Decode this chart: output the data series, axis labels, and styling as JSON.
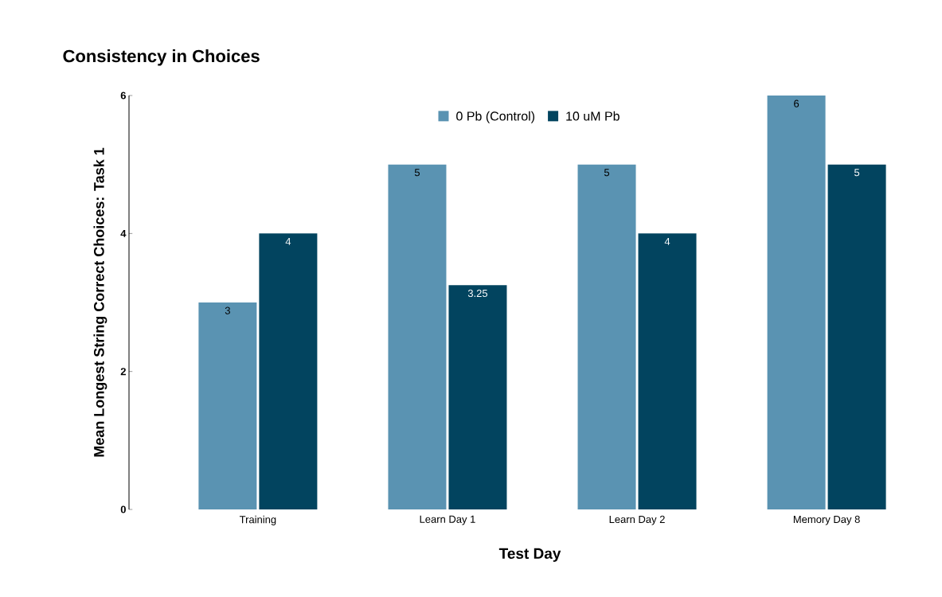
{
  "chart_data": {
    "type": "bar",
    "title": "Consistency in Choices",
    "xlabel": "Test Day",
    "ylabel": "Mean Longest String Correct Choices: Task 1",
    "categories": [
      "Training",
      "Learn Day 1",
      "Learn Day 2",
      "Memory Day 8"
    ],
    "series": [
      {
        "name": "0 Pb (Control)",
        "color": "#5a93b2",
        "values": [
          3,
          5,
          5,
          6
        ]
      },
      {
        "name": "10 uM Pb",
        "color": "#02445f",
        "values": [
          4,
          3.25,
          4,
          5
        ]
      }
    ],
    "ylim": [
      0,
      6
    ],
    "yticks": [
      0,
      2,
      4,
      6
    ],
    "data_labels": true,
    "legend": "top"
  }
}
